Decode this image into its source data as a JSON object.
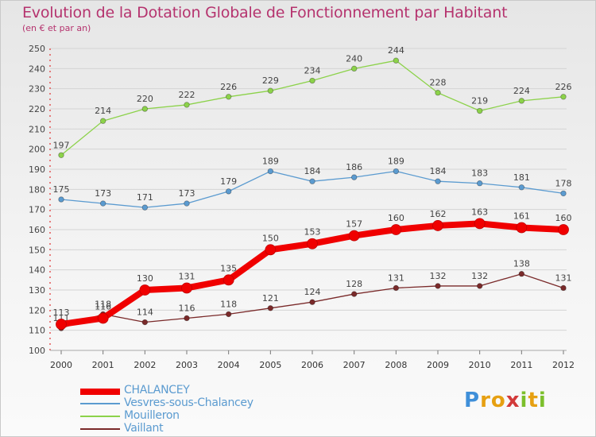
{
  "title": "Evolution de la Dotation Globale de Fonctionnement par Habitant",
  "subtitle": "(en € et par an)",
  "logo": {
    "letters": [
      "P",
      "r",
      "o",
      "x",
      "i",
      "t",
      "i"
    ],
    "colors": [
      "#3f8fd9",
      "#e6a012",
      "#e6a012",
      "#d23a3a",
      "#7cbf2c",
      "#e6a012",
      "#7cbf2c"
    ]
  },
  "chart_data": {
    "type": "line",
    "x": [
      "2000",
      "2001",
      "2002",
      "2003",
      "2004",
      "2005",
      "2006",
      "2007",
      "2008",
      "2009",
      "2010",
      "2011",
      "2012"
    ],
    "ylim": [
      100,
      250
    ],
    "yticks": [
      100,
      110,
      120,
      130,
      140,
      150,
      160,
      170,
      180,
      190,
      200,
      210,
      220,
      230,
      240,
      250
    ],
    "grid": true,
    "legend_position": "bottom-left",
    "series": [
      {
        "name": "Mouilleron",
        "color": "#8cd24a",
        "values": [
          197,
          214,
          220,
          222,
          226,
          229,
          234,
          240,
          244,
          228,
          219,
          224,
          226
        ]
      },
      {
        "name": "Vesvres-sous-Chalancey",
        "color": "#5b9bd0",
        "values": [
          175,
          173,
          171,
          173,
          179,
          189,
          184,
          186,
          189,
          184,
          183,
          181,
          178
        ]
      },
      {
        "name": "Vaillant",
        "color": "#7a2a2a",
        "values": [
          111,
          118,
          114,
          116,
          118,
          121,
          124,
          128,
          131,
          132,
          132,
          138,
          131
        ]
      },
      {
        "name": "CHALANCEY",
        "color": "#f00000",
        "values": [
          113,
          116,
          130,
          131,
          135,
          150,
          153,
          157,
          160,
          162,
          163,
          161,
          160
        ]
      }
    ]
  },
  "legend": [
    {
      "name": "CHALANCEY",
      "color": "#f00000"
    },
    {
      "name": "Vesvres-sous-Chalancey",
      "color": "#5b9bd0"
    },
    {
      "name": "Mouilleron",
      "color": "#8cd24a"
    },
    {
      "name": "Vaillant",
      "color": "#7a2a2a"
    }
  ]
}
